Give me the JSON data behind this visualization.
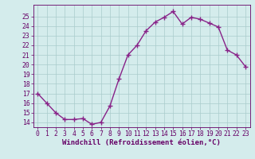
{
  "x": [
    0,
    1,
    2,
    3,
    4,
    5,
    6,
    7,
    8,
    9,
    10,
    11,
    12,
    13,
    14,
    15,
    16,
    17,
    18,
    19,
    20,
    21,
    22,
    23
  ],
  "y": [
    17.0,
    16.0,
    15.0,
    14.3,
    14.3,
    14.4,
    13.8,
    14.0,
    15.7,
    18.5,
    21.0,
    22.0,
    23.5,
    24.4,
    24.9,
    25.5,
    24.2,
    24.9,
    24.7,
    24.3,
    23.9,
    21.5,
    21.0,
    19.8
  ],
  "line_color": "#882288",
  "marker": "+",
  "marker_size": 4,
  "bg_color": "#d4ecec",
  "grid_color": "#aacccc",
  "xlabel": "Windchill (Refroidissement éolien,°C)",
  "ylim": [
    13.5,
    26.2
  ],
  "xlim": [
    -0.5,
    23.5
  ],
  "yticks": [
    14,
    15,
    16,
    17,
    18,
    19,
    20,
    21,
    22,
    23,
    24,
    25
  ],
  "xticks": [
    0,
    1,
    2,
    3,
    4,
    5,
    6,
    7,
    8,
    9,
    10,
    11,
    12,
    13,
    14,
    15,
    16,
    17,
    18,
    19,
    20,
    21,
    22,
    23
  ],
  "axis_label_color": "#660066",
  "tick_color": "#660066",
  "font_size_xlabel": 6.5,
  "font_size_ticks": 5.8,
  "line_width": 1.0,
  "marker_edge_width": 1.0
}
